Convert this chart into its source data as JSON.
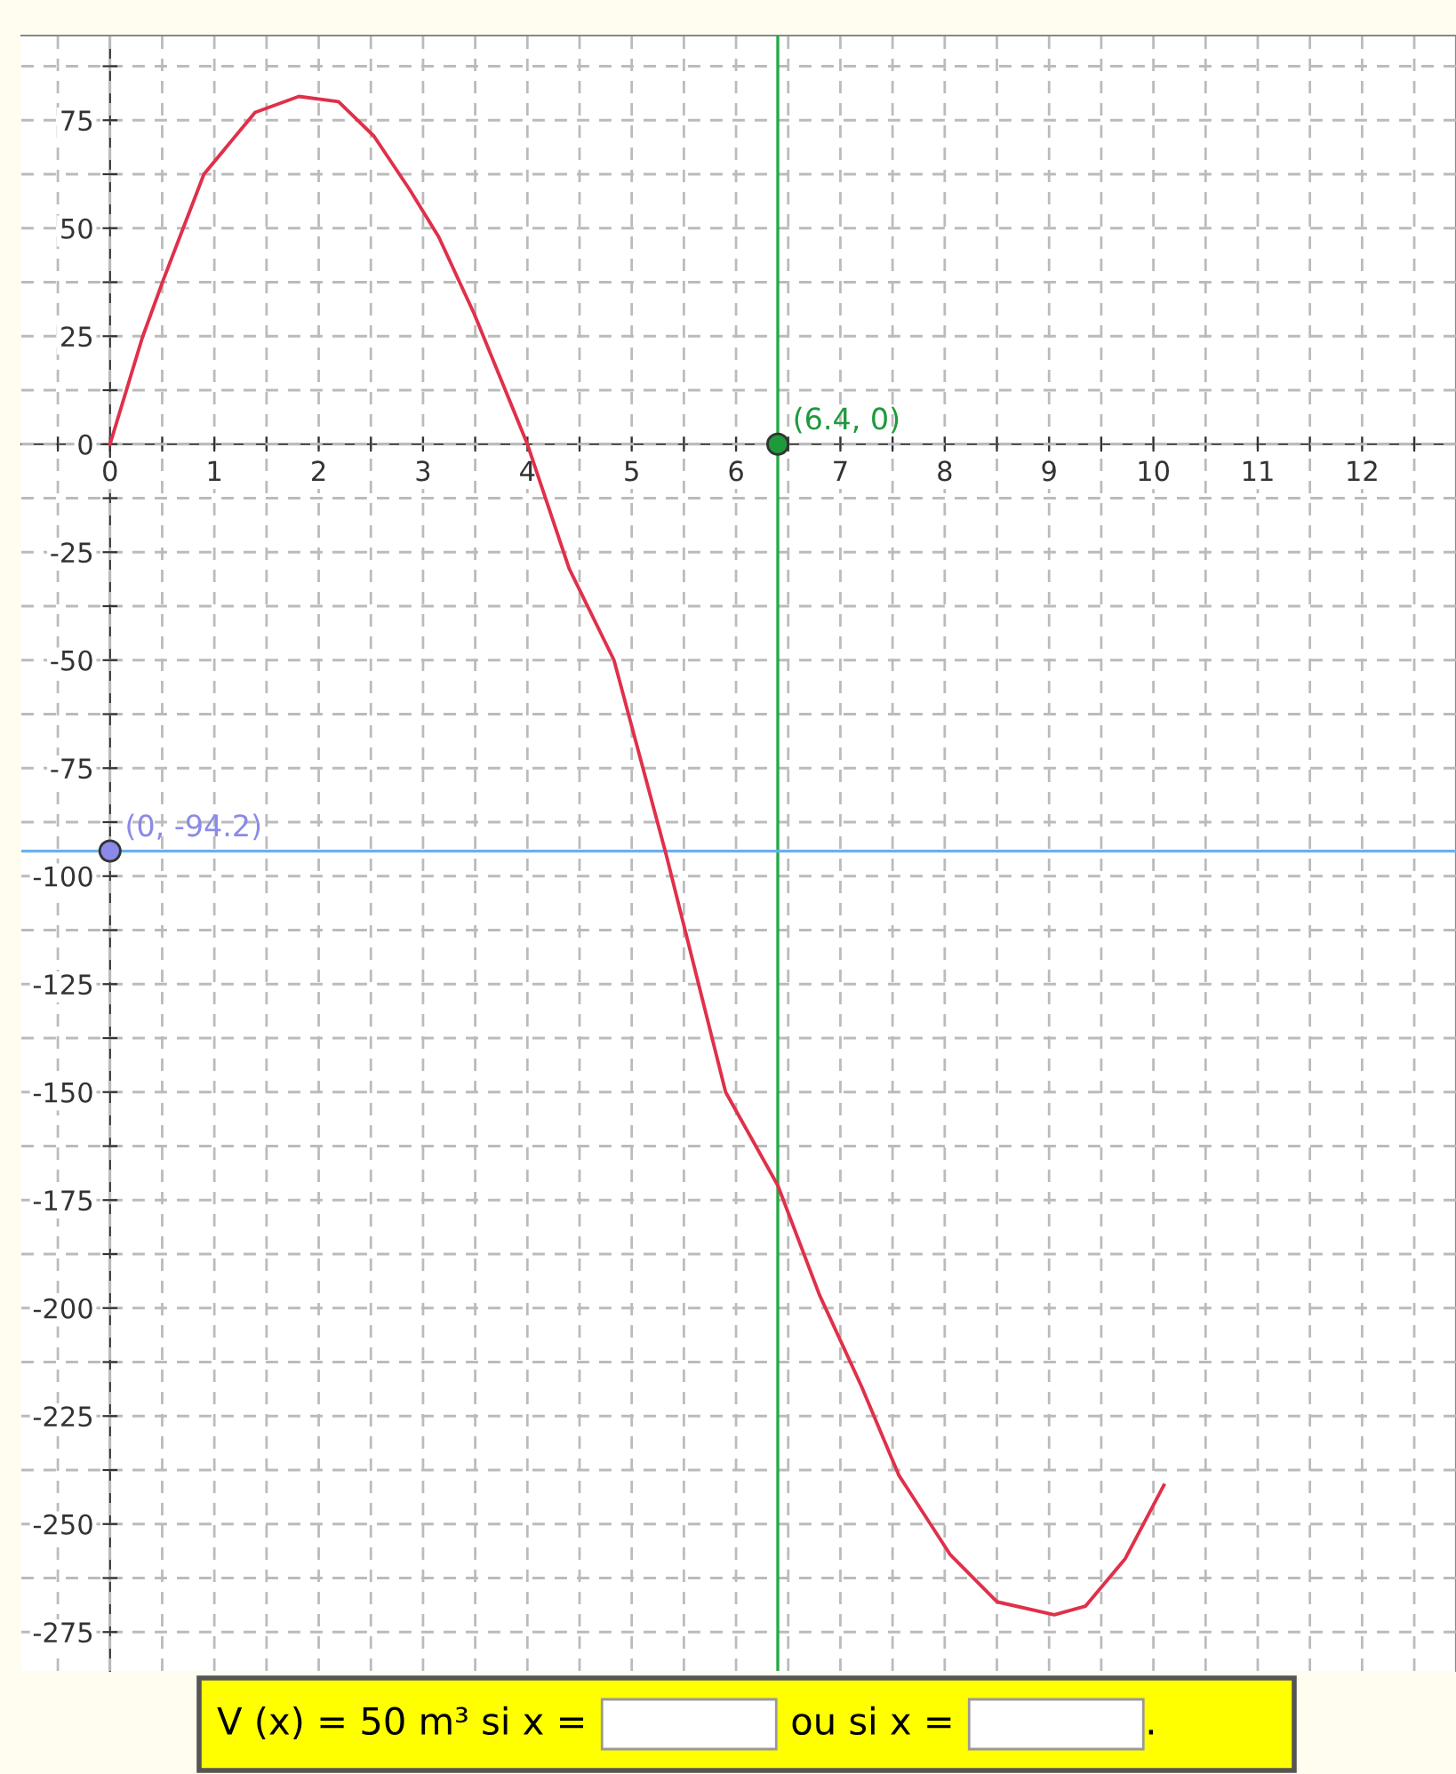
{
  "chart_data": {
    "type": "line",
    "series": [
      {
        "color": "#e0304a",
        "x": [
          0,
          0.31,
          0.51,
          0.9,
          1.39,
          1.81,
          2.19,
          2.53,
          2.87,
          3.15,
          3.49,
          4.0,
          4.4,
          4.83,
          5.33,
          5.9,
          6.4,
          6.8,
          7.2,
          7.56,
          8.05,
          8.5,
          9.05,
          9.35,
          9.73,
          10.1
        ],
        "values": [
          0,
          24.7,
          38,
          62.5,
          76.8,
          80.5,
          79.3,
          71.3,
          59,
          48,
          30.2,
          0,
          -28.8,
          -50,
          -95,
          -150,
          -171.6,
          -197,
          -218,
          -238.7,
          -257,
          -268,
          -271,
          -269,
          -258,
          -241
        ]
      },
      {
        "type": "scatter",
        "color": "#1e9a3c",
        "x": [
          6.4
        ],
        "values": [
          0
        ]
      },
      {
        "type": "scatter",
        "color": "#8a8ae8",
        "x": [
          0
        ],
        "values": [
          -94.2
        ]
      }
    ],
    "ref_lines": [
      {
        "axis": "x",
        "value": 6.4,
        "color": "#22aa44"
      },
      {
        "axis": "y",
        "value": -94.2,
        "color": "#6ab0f0"
      }
    ],
    "annotations": [
      {
        "text": "(6.4, 0)",
        "x": 6.4,
        "y": 0
      },
      {
        "text": "(0, -94.2)",
        "x": 0,
        "y": -94.2
      },
      "V (x) = 50 m³ si x =",
      "ou si x =",
      "."
    ],
    "xlim": [
      -0.85,
      12.9
    ],
    "ylim": [
      -284,
      94.6
    ],
    "xticks": [
      0,
      {
        "value": 0.5,
        "label": null
      },
      1,
      {
        "value": 1.5,
        "label": null
      },
      2,
      {
        "value": 2.5,
        "label": null
      },
      3,
      {
        "value": 3.5,
        "label": null
      },
      4,
      {
        "value": 4.5,
        "label": null
      },
      5,
      {
        "value": 5.5,
        "label": null
      },
      6,
      {
        "value": 6.5,
        "label": null
      },
      7,
      {
        "value": 7.5,
        "label": null
      },
      8,
      {
        "value": 8.5,
        "label": null
      },
      9,
      {
        "value": 9.5,
        "label": null
      },
      10,
      {
        "value": 10.5,
        "label": null
      },
      11,
      {
        "value": 11.5,
        "label": null
      },
      12,
      {
        "value": 12.5,
        "label": null
      },
      {
        "value": -0.5,
        "label": null
      }
    ],
    "yticks": [
      -275,
      {
        "value": -262.5,
        "label": null
      },
      -250,
      {
        "value": -237.5,
        "label": null
      },
      -225,
      {
        "value": -212.5,
        "label": null
      },
      -200,
      {
        "value": -187.5,
        "label": null
      },
      -175,
      {
        "value": -162.5,
        "label": null
      },
      -150,
      {
        "value": -137.5,
        "label": null
      },
      -125,
      {
        "value": -112.5,
        "label": null
      },
      -100,
      {
        "value": -87.5,
        "label": null
      },
      -75,
      {
        "value": -62.5,
        "label": null
      },
      -50,
      {
        "value": -37.5,
        "label": null
      },
      -25,
      {
        "value": -12.5,
        "label": null
      },
      0,
      {
        "value": 12.5,
        "label": null
      },
      25,
      {
        "value": 37.5,
        "label": null
      },
      50,
      {
        "value": 62.5,
        "label": null
      },
      75,
      {
        "value": 87.5,
        "label": null
      }
    ],
    "grid": true,
    "line_style": "solid"
  }
}
